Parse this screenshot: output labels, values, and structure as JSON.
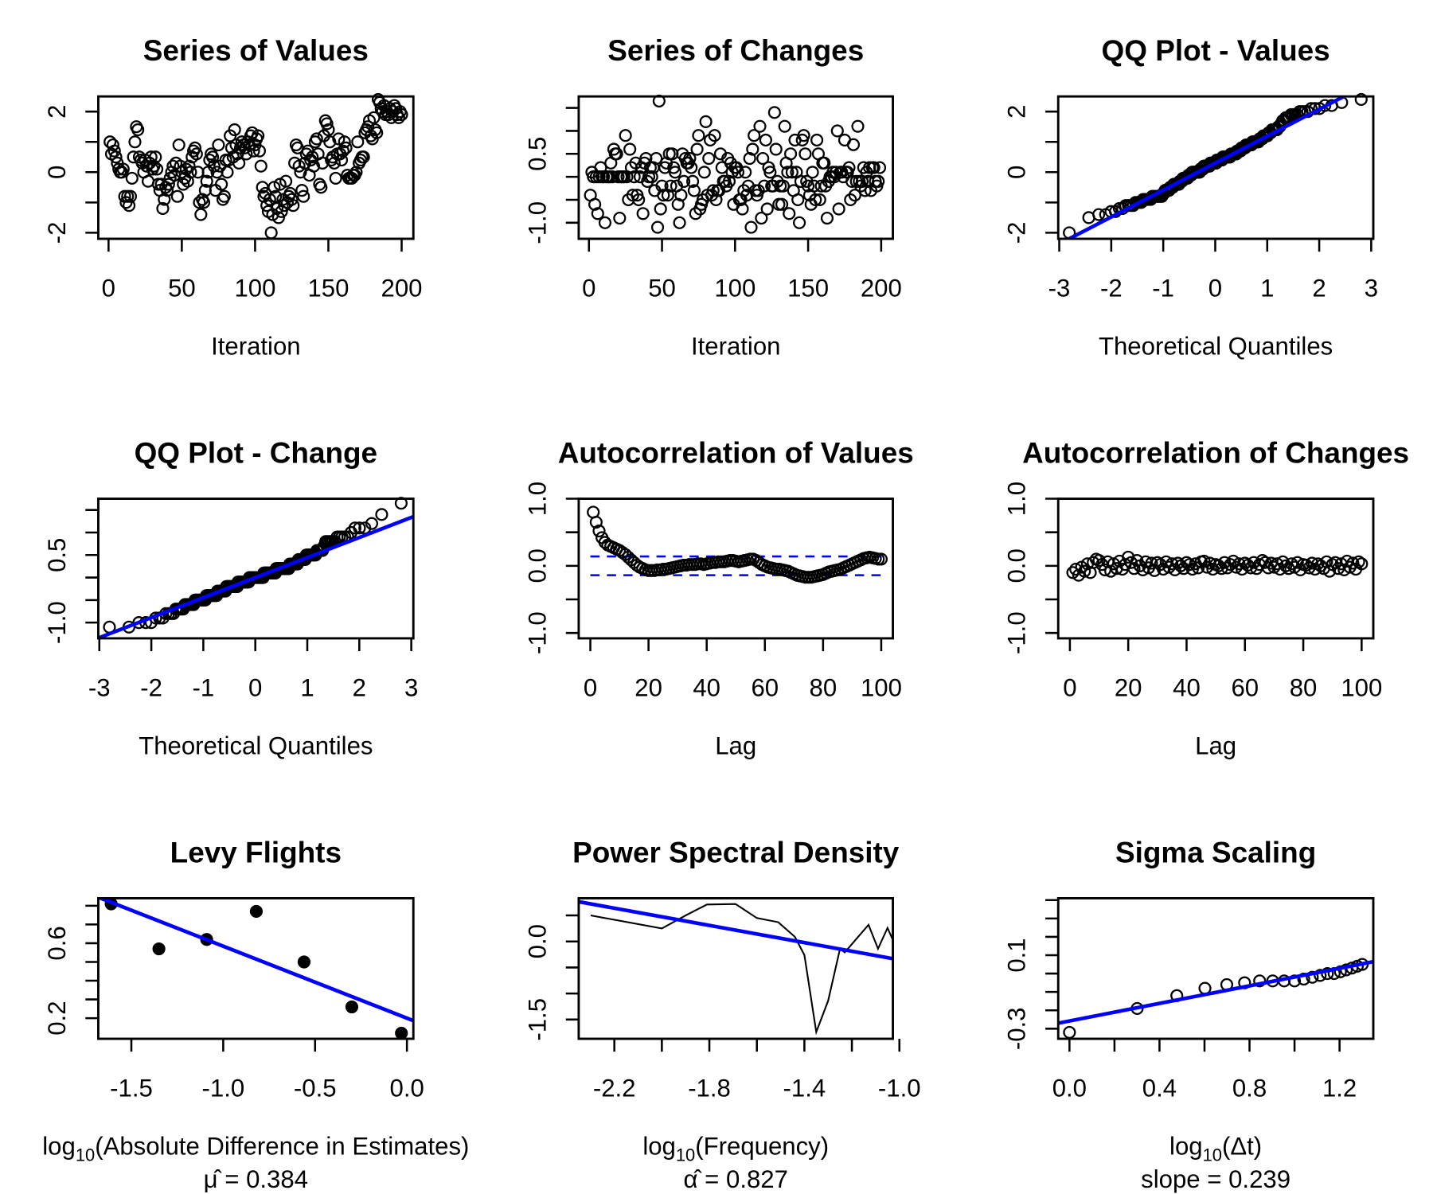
{
  "colors": {
    "points": "#000000",
    "fit_line": "#0000FF",
    "confidence_band": "#0000FF"
  },
  "chart_data": [
    {
      "type": "scatter",
      "title": "Series of Values",
      "xlabel": {
        "text": "Iteration"
      },
      "xlim": [
        -7,
        208
      ],
      "ylim": [
        -2.2,
        2.5
      ],
      "xticks": [
        0,
        50,
        100,
        150,
        200
      ],
      "xtick_labels": [
        "0",
        "50",
        "100",
        "150",
        "200"
      ],
      "yticks": [
        -2,
        -1,
        0,
        1,
        2
      ],
      "ytick_labels": [
        "-2",
        "",
        "0",
        "",
        "2"
      ],
      "marker": "open-circle",
      "values": [
        1.0,
        0.6,
        0.9,
        0.7,
        0.5,
        0.3,
        0.1,
        0.0,
        0.0,
        0.1,
        -0.8,
        -1.0,
        -0.8,
        -1.1,
        -0.8,
        -0.2,
        0.5,
        1.0,
        1.5,
        1.4,
        0.5,
        0.4,
        0.3,
        0.0,
        0.4,
        0.2,
        -0.3,
        0.3,
        0.5,
        0.1,
        0.2,
        0.5,
        0.1,
        -0.4,
        -0.6,
        -0.4,
        -1.2,
        -0.9,
        -0.5,
        -0.6,
        -0.4,
        -0.2,
        0.0,
        0.2,
        -0.1,
        0.3,
        -0.8,
        0.9,
        0.2,
        0.0,
        -0.4,
        -0.2,
        0.1,
        -0.3,
        0.2,
        0.0,
        0.5,
        0.7,
        0.8,
        0.6,
        0.0,
        -1.0,
        -1.4,
        -0.9,
        -1.0,
        -0.6,
        -0.3,
        0.0,
        0.4,
        0.6,
        0.5,
        0.2,
        -0.6,
        0.0,
        0.9,
        0.2,
        -0.4,
        -0.9,
        -0.8,
        0.4,
        0.0,
        0.4,
        1.2,
        0.8,
        0.5,
        1.4,
        0.9,
        0.6,
        0.3,
        0.8,
        1.0,
        0.9,
        0.8,
        0.6,
        1.0,
        0.9,
        1.2,
        1.3,
        0.7,
        0.9,
        1.1,
        1.2,
        0.7,
        0.2,
        -0.5,
        -0.8,
        -0.7,
        -1.1,
        -1.3,
        -0.9,
        -2.0,
        -1.4,
        -0.5,
        -0.8,
        -1.2,
        -1.5,
        -0.4,
        -1.3,
        -0.9,
        -1.1,
        -0.3,
        -1.0,
        -0.8,
        -0.7,
        -0.9,
        -1.1,
        0.3,
        0.9,
        0.8,
        0.2,
        0.0,
        -0.6,
        -0.8,
        0.3,
        0.6,
        0.7,
        -0.1,
        0.4,
        0.5,
        0.2,
        1.0,
        1.1,
        0.6,
        -0.4,
        -0.5,
        0.3,
        1.2,
        1.7,
        1.6,
        1.4,
        1.0,
        0.4,
        0.5,
        0.3,
        -0.2,
        0.6,
        1.1,
        0.6,
        0.4,
        0.7,
        1.0,
        0.8,
        -0.1,
        -0.2,
        -0.2,
        -0.2,
        -0.1,
        -0.1,
        0.0,
        1.0,
        0.3,
        0.4,
        0.5,
        0.5,
        1.3,
        1.4,
        1.5,
        1.7,
        1.2,
        1.1,
        1.8,
        1.4,
        1.3,
        2.4,
        2.3,
        2.1,
        2.0,
        2.2,
        1.9,
        2.0,
        1.9,
        2.1,
        1.8,
        2.0,
        2.2,
        2.1,
        1.9,
        1.8,
        2.0,
        1.9
      ]
    },
    {
      "type": "scatter",
      "title": "Series of Changes",
      "xlabel": {
        "text": "Iteration"
      },
      "xlim": [
        -7,
        208
      ],
      "ylim": [
        -1.35,
        1.75
      ],
      "xticks": [
        0,
        50,
        100,
        150,
        200
      ],
      "xtick_labels": [
        "0",
        "50",
        "100",
        "150",
        "200"
      ],
      "yticks": [
        1.5,
        1.0,
        0.5,
        0.0,
        -0.5,
        -1.0
      ],
      "ytick_labels": [
        "",
        "",
        "0.5",
        "",
        "",
        "-1.0"
      ],
      "marker": "open-circle",
      "values": [
        -0.4,
        0.1,
        0.0,
        -0.6,
        0.0,
        -0.8,
        0.0,
        0.2,
        0.0,
        0.0,
        -1.0,
        0.0,
        0.0,
        0.0,
        0.3,
        0.0,
        0.6,
        0.5,
        0.5,
        0.0,
        -0.9,
        0.0,
        0.0,
        0.0,
        0.9,
        0.0,
        -0.5,
        0.6,
        0.2,
        -0.4,
        0.0,
        0.3,
        -0.4,
        -0.5,
        0.0,
        0.2,
        -0.8,
        0.3,
        0.4,
        -0.1,
        0.0,
        0.2,
        0.0,
        0.2,
        -0.3,
        0.4,
        -1.1,
        1.65,
        -0.7,
        -0.2,
        -0.4,
        0.2,
        0.3,
        -0.4,
        0.5,
        -0.2,
        0.5,
        0.2,
        0.1,
        -0.2,
        -0.6,
        -1.0,
        -0.4,
        0.5,
        -0.1,
        0.4,
        0.3,
        0.3,
        0.4,
        0.2,
        -0.1,
        -0.3,
        -0.8,
        0.6,
        0.9,
        -0.7,
        -0.6,
        -0.5,
        0.1,
        1.2,
        -0.4,
        0.4,
        0.8,
        -0.4,
        -0.3,
        0.9,
        -0.5,
        -0.3,
        -0.3,
        0.5,
        0.2,
        -0.1,
        -0.1,
        -0.2,
        0.4,
        -0.1,
        0.3,
        0.1,
        -0.6,
        0.2,
        0.2,
        0.1,
        -0.5,
        -0.5,
        -0.7,
        -0.3,
        0.1,
        -0.4,
        -0.2,
        0.4,
        -1.1,
        0.6,
        0.9,
        -0.3,
        -0.4,
        -0.3,
        1.1,
        -0.9,
        0.4,
        -0.2,
        0.8,
        -0.7,
        0.2,
        0.1,
        -0.2,
        -0.2,
        1.4,
        0.6,
        -0.1,
        -0.6,
        -0.2,
        -0.6,
        -0.2,
        1.1,
        0.3,
        0.1,
        -0.8,
        0.5,
        0.1,
        -0.3,
        0.8,
        0.1,
        -0.5,
        -1.0,
        -0.1,
        0.8,
        0.9,
        0.5,
        -0.1,
        -0.2,
        -0.4,
        -0.6,
        0.1,
        -0.2,
        -0.5,
        0.8,
        0.5,
        -0.5,
        -0.2,
        0.3,
        0.3,
        -0.2,
        -0.9,
        -0.1,
        0.0,
        0.0,
        0.1,
        0.0,
        0.1,
        1.0,
        -0.7,
        0.1,
        0.1,
        0.0,
        0.8,
        0.1,
        0.1,
        0.2,
        -0.5,
        -0.1,
        0.7,
        -0.4,
        -0.1,
        1.1,
        -0.1,
        -0.2,
        -0.1,
        0.2,
        -0.3,
        0.1,
        -0.1,
        0.2,
        -0.3,
        0.2,
        0.2,
        -0.1,
        -0.2,
        -0.1,
        0.2
      ]
    },
    {
      "type": "qq",
      "title": "QQ Plot - Values",
      "sample": "Series of Values",
      "xlabel": {
        "text": "Theoretical Quantiles"
      },
      "xlim": [
        -3.02,
        3.04
      ],
      "ylim": [
        -2.2,
        2.5
      ],
      "xticks": [
        -3,
        -2,
        -1,
        0,
        1,
        2,
        3
      ],
      "xtick_labels": [
        "-3",
        "-2",
        "-1",
        "0",
        "1",
        "2",
        "3"
      ],
      "yticks": [
        -2,
        -1,
        0,
        1,
        2
      ],
      "ytick_labels": [
        "-2",
        "",
        "0",
        "",
        "2"
      ],
      "marker": "open-circle",
      "reference_line": "qqline"
    },
    {
      "type": "qq",
      "title": "QQ Plot - Change",
      "sample": "Series of Changes",
      "xlabel": {
        "text": "Theoretical Quantiles"
      },
      "xlim": [
        -3.02,
        3.04
      ],
      "ylim": [
        -1.35,
        1.75
      ],
      "xticks": [
        -3,
        -2,
        -1,
        0,
        1,
        2,
        3
      ],
      "xtick_labels": [
        "-3",
        "-2",
        "-1",
        "0",
        "1",
        "2",
        "3"
      ],
      "yticks": [
        1.5,
        1.0,
        0.5,
        0.0,
        -0.5,
        -1.0
      ],
      "ytick_labels": [
        "",
        "",
        "0.5",
        "",
        "",
        "-1.0"
      ],
      "marker": "open-circle",
      "reference_line": "qqline"
    },
    {
      "type": "scatter",
      "title": "Autocorrelation of Values",
      "xlabel": {
        "text": "Lag"
      },
      "xlim": [
        -4,
        104
      ],
      "ylim": [
        -1.08,
        1.0
      ],
      "xticks": [
        0,
        20,
        40,
        60,
        80,
        100
      ],
      "xtick_labels": [
        "0",
        "20",
        "40",
        "60",
        "80",
        "100"
      ],
      "yticks": [
        -1.0,
        -0.5,
        0.0,
        0.5,
        1.0
      ],
      "ytick_labels": [
        "-1.0",
        "",
        "0.0",
        "",
        "1.0"
      ],
      "marker": "open-circle",
      "confidence_band": [
        -0.14,
        0.14
      ],
      "lags_start": 1,
      "values": [
        0.8,
        0.65,
        0.52,
        0.42,
        0.35,
        0.31,
        0.29,
        0.27,
        0.25,
        0.23,
        0.2,
        0.17,
        0.13,
        0.09,
        0.05,
        0.01,
        -0.02,
        -0.04,
        -0.06,
        -0.07,
        -0.07,
        -0.07,
        -0.06,
        -0.06,
        -0.05,
        -0.05,
        -0.04,
        -0.03,
        -0.02,
        -0.01,
        0.0,
        0.01,
        0.01,
        0.02,
        0.02,
        0.02,
        0.03,
        0.03,
        0.02,
        0.03,
        0.04,
        0.05,
        0.05,
        0.06,
        0.06,
        0.06,
        0.07,
        0.08,
        0.08,
        0.07,
        0.06,
        0.07,
        0.08,
        0.09,
        0.1,
        0.1,
        0.08,
        0.05,
        0.02,
        0.0,
        -0.02,
        -0.03,
        -0.04,
        -0.05,
        -0.05,
        -0.06,
        -0.07,
        -0.08,
        -0.1,
        -0.12,
        -0.14,
        -0.15,
        -0.16,
        -0.17,
        -0.17,
        -0.17,
        -0.16,
        -0.15,
        -0.14,
        -0.13,
        -0.11,
        -0.09,
        -0.08,
        -0.07,
        -0.06,
        -0.05,
        -0.03,
        -0.01,
        0.01,
        0.03,
        0.05,
        0.07,
        0.09,
        0.11,
        0.12,
        0.13,
        0.12,
        0.11,
        0.1,
        0.1
      ]
    },
    {
      "type": "scatter",
      "title": "Autocorrelation of Changes",
      "xlabel": {
        "text": "Lag"
      },
      "xlim": [
        -4,
        104
      ],
      "ylim": [
        -1.08,
        1.0
      ],
      "xticks": [
        0,
        20,
        40,
        60,
        80,
        100
      ],
      "xtick_labels": [
        "0",
        "20",
        "40",
        "60",
        "80",
        "100"
      ],
      "yticks": [
        -1.0,
        -0.5,
        0.0,
        0.5,
        1.0
      ],
      "ytick_labels": [
        "-1.0",
        "",
        "0.0",
        "",
        "1.0"
      ],
      "marker": "open-circle",
      "lags_start": 1,
      "values": [
        -0.1,
        -0.05,
        -0.14,
        -0.02,
        -0.08,
        0.03,
        -0.1,
        0.05,
        0.1,
        0.08,
        0.02,
        -0.06,
        0.06,
        -0.08,
        0.03,
        -0.04,
        0.07,
        -0.05,
        0.02,
        0.13,
        0.05,
        -0.04,
        0.08,
        0.0,
        -0.06,
        0.06,
        -0.03,
        0.04,
        -0.07,
        0.05,
        0.02,
        -0.05,
        0.06,
        -0.02,
        0.03,
        -0.06,
        0.04,
        0.0,
        -0.04,
        0.05,
        0.02,
        -0.05,
        0.03,
        -0.03,
        0.06,
        0.07,
        -0.02,
        0.04,
        -0.05,
        0.02,
        0.0,
        -0.04,
        0.05,
        -0.03,
        0.02,
        0.07,
        -0.02,
        0.03,
        -0.05,
        0.04,
        0.01,
        -0.03,
        0.05,
        -0.04,
        0.02,
        0.08,
        0.05,
        -0.03,
        0.04,
        -0.02,
        0.03,
        -0.05,
        0.06,
        0.0,
        -0.04,
        0.03,
        -0.02,
        0.05,
        -0.06,
        0.02,
        0.01,
        -0.03,
        0.04,
        -0.05,
        0.03,
        0.0,
        -0.04,
        0.06,
        -0.08,
        0.02,
        0.05,
        -0.04,
        0.03,
        -0.06,
        0.07,
        -0.02,
        0.04,
        -0.05,
        0.06,
        0.03
      ]
    },
    {
      "type": "scatter",
      "title": "Levy Flights",
      "xlabel": {
        "prefix": "log",
        "sub": "10",
        "rest": "(Absolute Difference in Estimates)"
      },
      "subtitle": "μ̂ = 0.384",
      "xlim": [
        -1.68,
        0.035
      ],
      "ylim": [
        0.09,
        0.84
      ],
      "xticks": [
        -1.5,
        -1.0,
        -0.5,
        0.0
      ],
      "xtick_labels": [
        "-1.5",
        "-1.0",
        "-0.5",
        "0.0"
      ],
      "yticks": [
        0.8,
        0.7,
        0.6,
        0.5,
        0.4,
        0.3,
        0.2
      ],
      "ytick_labels": [
        "",
        "",
        "0.6",
        "",
        "",
        "",
        "0.2"
      ],
      "marker": "filled-circle",
      "points": [
        [
          -1.61,
          0.81
        ],
        [
          -1.35,
          0.57
        ],
        [
          -1.09,
          0.62
        ],
        [
          -0.82,
          0.77
        ],
        [
          -0.56,
          0.5
        ],
        [
          -0.3,
          0.26
        ],
        [
          -0.03,
          0.12
        ]
      ],
      "fit": {
        "slope": -0.384,
        "intercept": 0.2
      }
    },
    {
      "type": "line",
      "title": "Power Spectral Density",
      "xlabel": {
        "prefix": "log",
        "sub": "10",
        "rest": "(Frequency)"
      },
      "subtitle": "α̂ = 0.827",
      "xlim": [
        -2.35,
        -1.0275
      ],
      "ylim": [
        -1.87,
        0.83
      ],
      "xticks": [
        -2.2,
        -2.0,
        -1.8,
        -1.6,
        -1.4,
        -1.2,
        -1.0
      ],
      "xtick_labels": [
        "-2.2",
        "",
        "-1.8",
        "",
        "-1.4",
        "",
        "-1.0"
      ],
      "yticks": [
        0.5,
        0.0,
        -0.5,
        -1.0,
        -1.5
      ],
      "ytick_labels": [
        "",
        "0.0",
        "",
        "",
        "-1.5"
      ],
      "points": [
        [
          -2.3,
          0.5
        ],
        [
          -2.0,
          0.25
        ],
        [
          -1.9,
          0.5
        ],
        [
          -1.81,
          0.71
        ],
        [
          -1.69,
          0.72
        ],
        [
          -1.6,
          0.45
        ],
        [
          -1.51,
          0.37
        ],
        [
          -1.44,
          0.09
        ],
        [
          -1.4,
          -0.26
        ],
        [
          -1.35,
          -1.74
        ],
        [
          -1.3,
          -1.14
        ],
        [
          -1.25,
          -0.14
        ],
        [
          -1.23,
          -0.21
        ],
        [
          -1.13,
          0.32
        ],
        [
          -1.09,
          -0.14
        ],
        [
          -1.05,
          0.26
        ],
        [
          -1.02,
          -0.05
        ]
      ],
      "fit": {
        "slope": -0.827,
        "intercept": -1.18
      }
    },
    {
      "type": "scatter",
      "title": "Sigma Scaling",
      "xlabel": {
        "prefix": "log",
        "sub": "10",
        "rest": "(Δt)"
      },
      "subtitle": "slope = 0.239",
      "xlim": [
        -0.05,
        1.35
      ],
      "ylim": [
        -0.355,
        0.41
      ],
      "xticks": [
        0.0,
        0.2,
        0.4,
        0.6,
        0.8,
        1.0,
        1.2
      ],
      "xtick_labels": [
        "0.0",
        "",
        "0.4",
        "",
        "0.8",
        "",
        "1.2"
      ],
      "yticks": [
        0.4,
        0.3,
        0.2,
        0.1,
        0.0,
        -0.1,
        -0.2,
        -0.3
      ],
      "ytick_labels": [
        "",
        "",
        "",
        "0.1",
        "",
        "",
        "",
        "-0.3"
      ],
      "marker": "open-circle",
      "points": [
        [
          0.0,
          -0.32
        ],
        [
          0.301,
          -0.19
        ],
        [
          0.477,
          -0.12
        ],
        [
          0.602,
          -0.08
        ],
        [
          0.699,
          -0.06
        ],
        [
          0.778,
          -0.05
        ],
        [
          0.845,
          -0.04
        ],
        [
          0.903,
          -0.04
        ],
        [
          0.954,
          -0.04
        ],
        [
          1.0,
          -0.04
        ],
        [
          1.041,
          -0.03
        ],
        [
          1.079,
          -0.02
        ],
        [
          1.114,
          -0.01
        ],
        [
          1.146,
          0.0
        ],
        [
          1.176,
          0.0
        ],
        [
          1.204,
          0.01
        ],
        [
          1.23,
          0.02
        ],
        [
          1.255,
          0.03
        ],
        [
          1.279,
          0.04
        ],
        [
          1.301,
          0.05
        ]
      ],
      "fit": {
        "slope": 0.239,
        "intercept": -0.258
      }
    }
  ]
}
